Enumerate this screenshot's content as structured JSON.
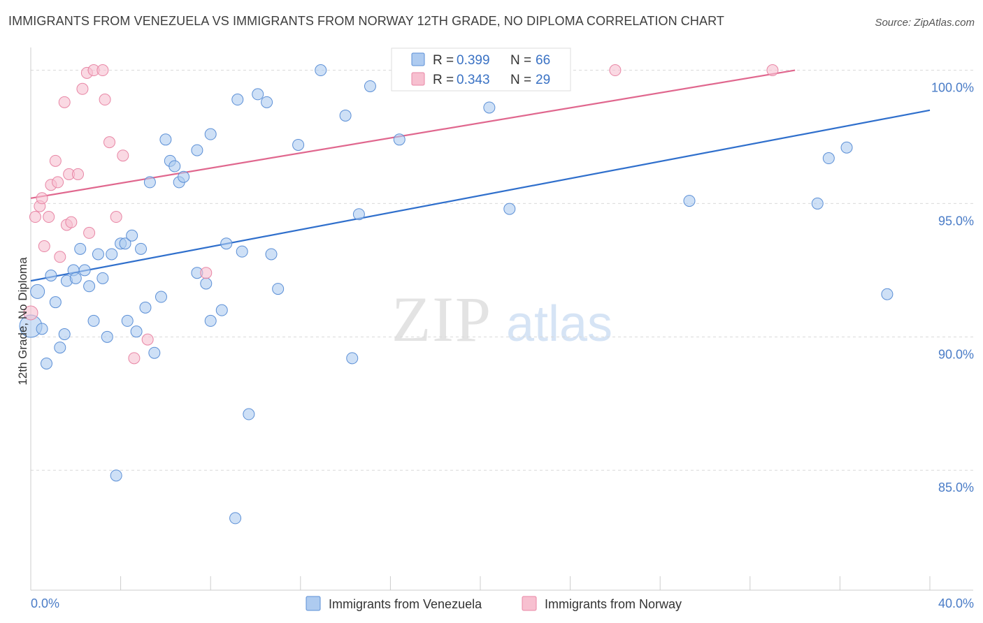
{
  "title": "IMMIGRANTS FROM VENEZUELA VS IMMIGRANTS FROM NORWAY 12TH GRADE, NO DIPLOMA CORRELATION CHART",
  "source": "Source: ZipAtlas.com",
  "watermark": {
    "zip": "ZIP",
    "atlas": "atlas"
  },
  "colors": {
    "venezuela_fill": "#aecbf0",
    "venezuela_stroke": "#5b8fd6",
    "venezuela_line": "#2f6fcc",
    "norway_fill": "#f7c0d0",
    "norway_stroke": "#e886a5",
    "norway_line": "#e0678e",
    "tick_text": "#4a7cc7",
    "grid": "#d9d9d9"
  },
  "stats": {
    "venezuela": {
      "r_label": "R = ",
      "r_value": "0.399",
      "n_label": "N = ",
      "n_value": "66"
    },
    "norway": {
      "r_label": "R = ",
      "r_value": "0.343",
      "n_label": "N = ",
      "n_value": "29"
    }
  },
  "chart_data": {
    "type": "scatter",
    "title": "IMMIGRANTS FROM VENEZUELA VS IMMIGRANTS FROM NORWAY 12TH GRADE, NO DIPLOMA CORRELATION CHART",
    "xlabel": "",
    "ylabel": "12th Grade, No Diploma",
    "xlim": [
      0,
      40
    ],
    "ylim": [
      80.5,
      100.8
    ],
    "x_tick_labels": [
      "0.0%",
      "40.0%"
    ],
    "y_ticks": [
      85,
      90,
      95,
      100
    ],
    "y_tick_labels": [
      "85.0%",
      "90.0%",
      "95.0%",
      "100.0%"
    ],
    "grid": true,
    "legend_position": "bottom-center",
    "series": [
      {
        "name": "Immigrants from Venezuela",
        "trend": {
          "x": [
            0,
            40
          ],
          "y": [
            92.1,
            98.5
          ]
        },
        "points": [
          {
            "x": 0.0,
            "y": 90.4,
            "size": 16
          },
          {
            "x": 0.3,
            "y": 91.7,
            "size": 10
          },
          {
            "x": 0.5,
            "y": 90.3,
            "size": 8
          },
          {
            "x": 0.7,
            "y": 89.0,
            "size": 8
          },
          {
            "x": 0.9,
            "y": 92.3,
            "size": 8
          },
          {
            "x": 1.1,
            "y": 91.3,
            "size": 8
          },
          {
            "x": 1.3,
            "y": 89.6,
            "size": 8
          },
          {
            "x": 1.5,
            "y": 90.1,
            "size": 8
          },
          {
            "x": 1.6,
            "y": 92.1,
            "size": 8
          },
          {
            "x": 1.9,
            "y": 92.5,
            "size": 8
          },
          {
            "x": 2.0,
            "y": 92.2,
            "size": 8
          },
          {
            "x": 2.2,
            "y": 93.3,
            "size": 8
          },
          {
            "x": 2.4,
            "y": 92.5,
            "size": 8
          },
          {
            "x": 2.6,
            "y": 91.9,
            "size": 8
          },
          {
            "x": 2.8,
            "y": 90.6,
            "size": 8
          },
          {
            "x": 3.0,
            "y": 93.1,
            "size": 8
          },
          {
            "x": 3.2,
            "y": 92.2,
            "size": 8
          },
          {
            "x": 3.4,
            "y": 90.0,
            "size": 8
          },
          {
            "x": 3.6,
            "y": 93.1,
            "size": 8
          },
          {
            "x": 3.8,
            "y": 84.8,
            "size": 8
          },
          {
            "x": 4.0,
            "y": 93.5,
            "size": 8
          },
          {
            "x": 4.2,
            "y": 93.5,
            "size": 8
          },
          {
            "x": 4.3,
            "y": 90.6,
            "size": 8
          },
          {
            "x": 4.5,
            "y": 93.8,
            "size": 8
          },
          {
            "x": 4.7,
            "y": 90.2,
            "size": 8
          },
          {
            "x": 4.9,
            "y": 93.3,
            "size": 8
          },
          {
            "x": 5.1,
            "y": 91.1,
            "size": 8
          },
          {
            "x": 5.3,
            "y": 95.8,
            "size": 8
          },
          {
            "x": 5.5,
            "y": 89.4,
            "size": 8
          },
          {
            "x": 5.8,
            "y": 91.5,
            "size": 8
          },
          {
            "x": 6.0,
            "y": 97.4,
            "size": 8
          },
          {
            "x": 6.2,
            "y": 96.6,
            "size": 8
          },
          {
            "x": 6.4,
            "y": 96.4,
            "size": 8
          },
          {
            "x": 6.6,
            "y": 95.8,
            "size": 8
          },
          {
            "x": 6.8,
            "y": 96.0,
            "size": 8
          },
          {
            "x": 7.4,
            "y": 97.0,
            "size": 8
          },
          {
            "x": 7.4,
            "y": 92.4,
            "size": 8
          },
          {
            "x": 7.8,
            "y": 92.0,
            "size": 8
          },
          {
            "x": 8.0,
            "y": 90.6,
            "size": 8
          },
          {
            "x": 8.0,
            "y": 97.6,
            "size": 8
          },
          {
            "x": 8.5,
            "y": 91.0,
            "size": 8
          },
          {
            "x": 8.7,
            "y": 93.5,
            "size": 8
          },
          {
            "x": 9.1,
            "y": 83.2,
            "size": 8
          },
          {
            "x": 9.2,
            "y": 98.9,
            "size": 8
          },
          {
            "x": 9.4,
            "y": 93.2,
            "size": 8
          },
          {
            "x": 9.7,
            "y": 87.1,
            "size": 8
          },
          {
            "x": 10.1,
            "y": 99.1,
            "size": 8
          },
          {
            "x": 10.5,
            "y": 98.8,
            "size": 8
          },
          {
            "x": 10.7,
            "y": 93.1,
            "size": 8
          },
          {
            "x": 11.0,
            "y": 91.8,
            "size": 8
          },
          {
            "x": 11.9,
            "y": 97.2,
            "size": 8
          },
          {
            "x": 12.9,
            "y": 100.0,
            "size": 8
          },
          {
            "x": 14.0,
            "y": 98.3,
            "size": 8
          },
          {
            "x": 14.3,
            "y": 89.2,
            "size": 8
          },
          {
            "x": 14.6,
            "y": 94.6,
            "size": 8
          },
          {
            "x": 15.1,
            "y": 99.4,
            "size": 8
          },
          {
            "x": 16.4,
            "y": 97.4,
            "size": 8
          },
          {
            "x": 17.1,
            "y": 99.9,
            "size": 8
          },
          {
            "x": 20.4,
            "y": 98.6,
            "size": 8
          },
          {
            "x": 21.3,
            "y": 94.8,
            "size": 8
          },
          {
            "x": 21.9,
            "y": 100.0,
            "size": 8
          },
          {
            "x": 29.3,
            "y": 95.1,
            "size": 8
          },
          {
            "x": 35.0,
            "y": 95.0,
            "size": 8
          },
          {
            "x": 35.5,
            "y": 96.7,
            "size": 8
          },
          {
            "x": 36.3,
            "y": 97.1,
            "size": 8
          },
          {
            "x": 38.1,
            "y": 91.6,
            "size": 8
          }
        ]
      },
      {
        "name": "Immigrants from Norway",
        "trend": {
          "x": [
            0,
            34
          ],
          "y": [
            95.2,
            100.0
          ]
        },
        "points": [
          {
            "x": 0.0,
            "y": 90.9,
            "size": 10
          },
          {
            "x": 0.2,
            "y": 94.5,
            "size": 8
          },
          {
            "x": 0.4,
            "y": 94.9,
            "size": 8
          },
          {
            "x": 0.5,
            "y": 95.2,
            "size": 8
          },
          {
            "x": 0.6,
            "y": 93.4,
            "size": 8
          },
          {
            "x": 0.8,
            "y": 94.5,
            "size": 8
          },
          {
            "x": 0.9,
            "y": 95.7,
            "size": 8
          },
          {
            "x": 1.1,
            "y": 96.6,
            "size": 8
          },
          {
            "x": 1.2,
            "y": 95.8,
            "size": 8
          },
          {
            "x": 1.3,
            "y": 93.0,
            "size": 8
          },
          {
            "x": 1.5,
            "y": 98.8,
            "size": 8
          },
          {
            "x": 1.6,
            "y": 94.2,
            "size": 8
          },
          {
            "x": 1.7,
            "y": 96.1,
            "size": 8
          },
          {
            "x": 1.8,
            "y": 94.3,
            "size": 8
          },
          {
            "x": 2.1,
            "y": 96.1,
            "size": 8
          },
          {
            "x": 2.3,
            "y": 99.3,
            "size": 8
          },
          {
            "x": 2.5,
            "y": 99.9,
            "size": 8
          },
          {
            "x": 2.6,
            "y": 93.9,
            "size": 8
          },
          {
            "x": 2.8,
            "y": 100.0,
            "size": 8
          },
          {
            "x": 3.2,
            "y": 100.0,
            "size": 8
          },
          {
            "x": 3.3,
            "y": 98.9,
            "size": 8
          },
          {
            "x": 3.5,
            "y": 97.3,
            "size": 8
          },
          {
            "x": 3.8,
            "y": 94.5,
            "size": 8
          },
          {
            "x": 4.1,
            "y": 96.8,
            "size": 8
          },
          {
            "x": 4.6,
            "y": 89.2,
            "size": 8
          },
          {
            "x": 5.2,
            "y": 89.9,
            "size": 8
          },
          {
            "x": 7.8,
            "y": 92.4,
            "size": 8
          },
          {
            "x": 26.0,
            "y": 100.0,
            "size": 8
          },
          {
            "x": 33.0,
            "y": 100.0,
            "size": 8
          }
        ]
      }
    ]
  }
}
